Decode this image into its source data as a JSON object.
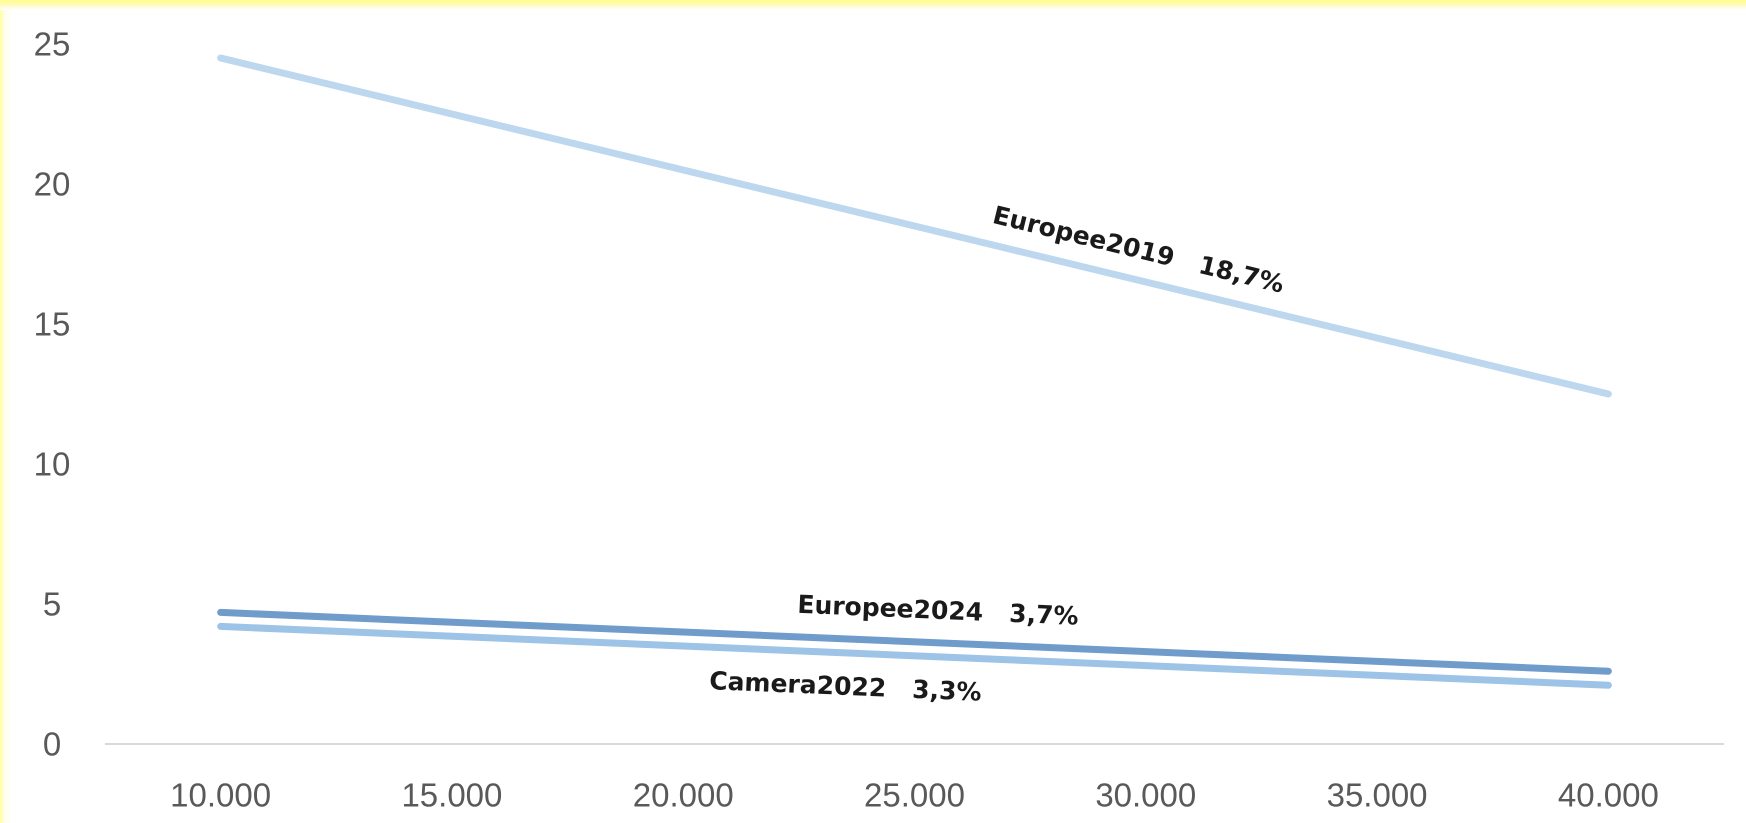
{
  "chart_data": {
    "type": "line",
    "title": "",
    "xlabel": "",
    "ylabel": "",
    "x": [
      10000,
      40000
    ],
    "x_ticks": [
      10000,
      15000,
      20000,
      25000,
      30000,
      35000,
      40000
    ],
    "x_tick_labels": [
      "10.000",
      "15.000",
      "20.000",
      "25.000",
      "30.000",
      "35.000",
      "40.000"
    ],
    "xlim": [
      7500,
      42500
    ],
    "y_ticks": [
      0,
      5,
      10,
      15,
      20,
      25
    ],
    "y_tick_labels": [
      "0",
      "5",
      "10",
      "15",
      "20",
      "25"
    ],
    "ylim": [
      0,
      25
    ],
    "grid": false,
    "legend": "none",
    "series": [
      {
        "name": "Europee2019",
        "label": "Europee2019   18,7%",
        "values": [
          24.5,
          12.5
        ],
        "color": "#bdd7ee"
      },
      {
        "name": "Europee2024",
        "label": "Europee2024   3,7%",
        "values": [
          4.7,
          2.6
        ],
        "color": "#6f9ccb"
      },
      {
        "name": "Camera2022",
        "label": "Camera2022   3,3%",
        "values": [
          4.2,
          2.1
        ],
        "color": "#9dc3e6"
      }
    ]
  }
}
